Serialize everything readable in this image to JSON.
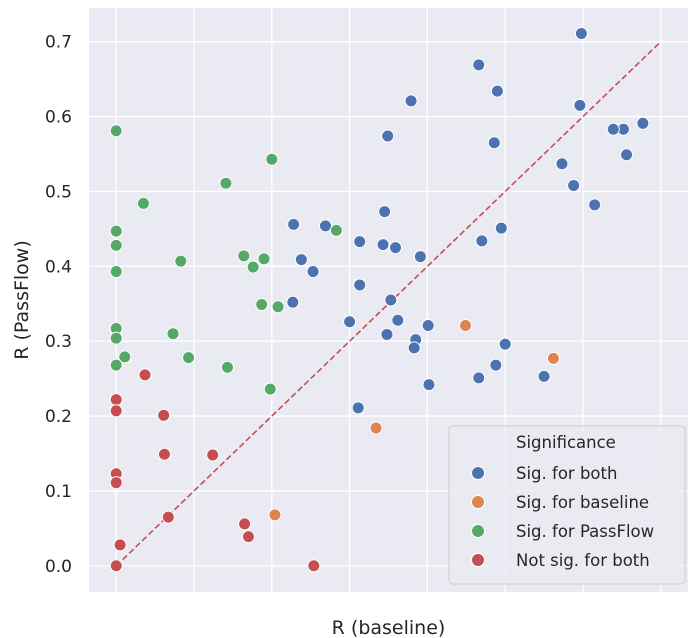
{
  "chart_data": {
    "type": "scatter",
    "xlabel": "R (baseline)",
    "ylabel": "R (PassFlow)",
    "xlim": [
      -0.035,
      0.735
    ],
    "ylim": [
      -0.035,
      0.745
    ],
    "y_ticks": [
      0.0,
      0.1,
      0.2,
      0.3,
      0.4,
      0.5,
      0.6,
      0.7
    ],
    "y_tick_labels": [
      "0.0",
      "0.1",
      "0.2",
      "0.3",
      "0.4",
      "0.5",
      "0.6",
      "0.7"
    ],
    "x_gridlines": [
      0.0,
      0.1,
      0.2,
      0.3,
      0.4,
      0.5,
      0.6,
      0.7
    ],
    "grid": true,
    "background_color": "#eaeaf2",
    "reference_line": {
      "from": [
        0.0,
        0.0
      ],
      "to": [
        0.7,
        0.7
      ],
      "style": "dashed",
      "color": "#c44e52"
    },
    "legend": {
      "title": "Significance",
      "placement": "lower-right",
      "entries": [
        "Sig. for both",
        "Sig. for baseline",
        "Sig. for PassFlow",
        "Not sig. for both"
      ]
    },
    "series": [
      {
        "name": "Sig. for both",
        "color": "#4c72b0",
        "points": [
          [
            0.598,
            0.711
          ],
          [
            0.466,
            0.669
          ],
          [
            0.49,
            0.634
          ],
          [
            0.379,
            0.621
          ],
          [
            0.596,
            0.615
          ],
          [
            0.349,
            0.574
          ],
          [
            0.486,
            0.565
          ],
          [
            0.677,
            0.591
          ],
          [
            0.652,
            0.583
          ],
          [
            0.639,
            0.583
          ],
          [
            0.656,
            0.549
          ],
          [
            0.573,
            0.537
          ],
          [
            0.588,
            0.508
          ],
          [
            0.615,
            0.482
          ],
          [
            0.345,
            0.473
          ],
          [
            0.228,
            0.456
          ],
          [
            0.269,
            0.454
          ],
          [
            0.495,
            0.451
          ],
          [
            0.47,
            0.434
          ],
          [
            0.313,
            0.433
          ],
          [
            0.343,
            0.429
          ],
          [
            0.359,
            0.425
          ],
          [
            0.238,
            0.409
          ],
          [
            0.391,
            0.413
          ],
          [
            0.253,
            0.393
          ],
          [
            0.313,
            0.375
          ],
          [
            0.353,
            0.355
          ],
          [
            0.227,
            0.352
          ],
          [
            0.362,
            0.328
          ],
          [
            0.3,
            0.326
          ],
          [
            0.401,
            0.321
          ],
          [
            0.348,
            0.309
          ],
          [
            0.385,
            0.302
          ],
          [
            0.5,
            0.296
          ],
          [
            0.383,
            0.291
          ],
          [
            0.488,
            0.268
          ],
          [
            0.466,
            0.251
          ],
          [
            0.55,
            0.253
          ],
          [
            0.402,
            0.242
          ],
          [
            0.311,
            0.211
          ]
        ]
      },
      {
        "name": "Sig. for baseline",
        "color": "#dd8452",
        "points": [
          [
            0.449,
            0.321
          ],
          [
            0.562,
            0.277
          ],
          [
            0.334,
            0.184
          ],
          [
            0.204,
            0.068
          ]
        ]
      },
      {
        "name": "Sig. for PassFlow",
        "color": "#55a868",
        "points": [
          [
            0.0,
            0.581
          ],
          [
            0.2,
            0.543
          ],
          [
            0.141,
            0.511
          ],
          [
            0.035,
            0.484
          ],
          [
            0.0,
            0.447
          ],
          [
            0.283,
            0.448
          ],
          [
            0.0,
            0.428
          ],
          [
            0.164,
            0.414
          ],
          [
            0.19,
            0.41
          ],
          [
            0.083,
            0.407
          ],
          [
            0.176,
            0.399
          ],
          [
            0.0,
            0.393
          ],
          [
            0.187,
            0.349
          ],
          [
            0.208,
            0.346
          ],
          [
            0.0,
            0.317
          ],
          [
            0.073,
            0.31
          ],
          [
            0.0,
            0.304
          ],
          [
            0.011,
            0.279
          ],
          [
            0.093,
            0.278
          ],
          [
            0.0,
            0.268
          ],
          [
            0.143,
            0.265
          ],
          [
            0.198,
            0.236
          ]
        ]
      },
      {
        "name": "Not sig. for both",
        "color": "#c44e52",
        "points": [
          [
            0.037,
            0.255
          ],
          [
            0.0,
            0.222
          ],
          [
            0.0,
            0.207
          ],
          [
            0.061,
            0.201
          ],
          [
            0.062,
            0.149
          ],
          [
            0.124,
            0.148
          ],
          [
            0.0,
            0.123
          ],
          [
            0.0,
            0.111
          ],
          [
            0.067,
            0.065
          ],
          [
            0.165,
            0.056
          ],
          [
            0.17,
            0.039
          ],
          [
            0.005,
            0.028
          ],
          [
            0.0,
            0.0
          ],
          [
            0.254,
            0.0
          ]
        ]
      }
    ]
  }
}
